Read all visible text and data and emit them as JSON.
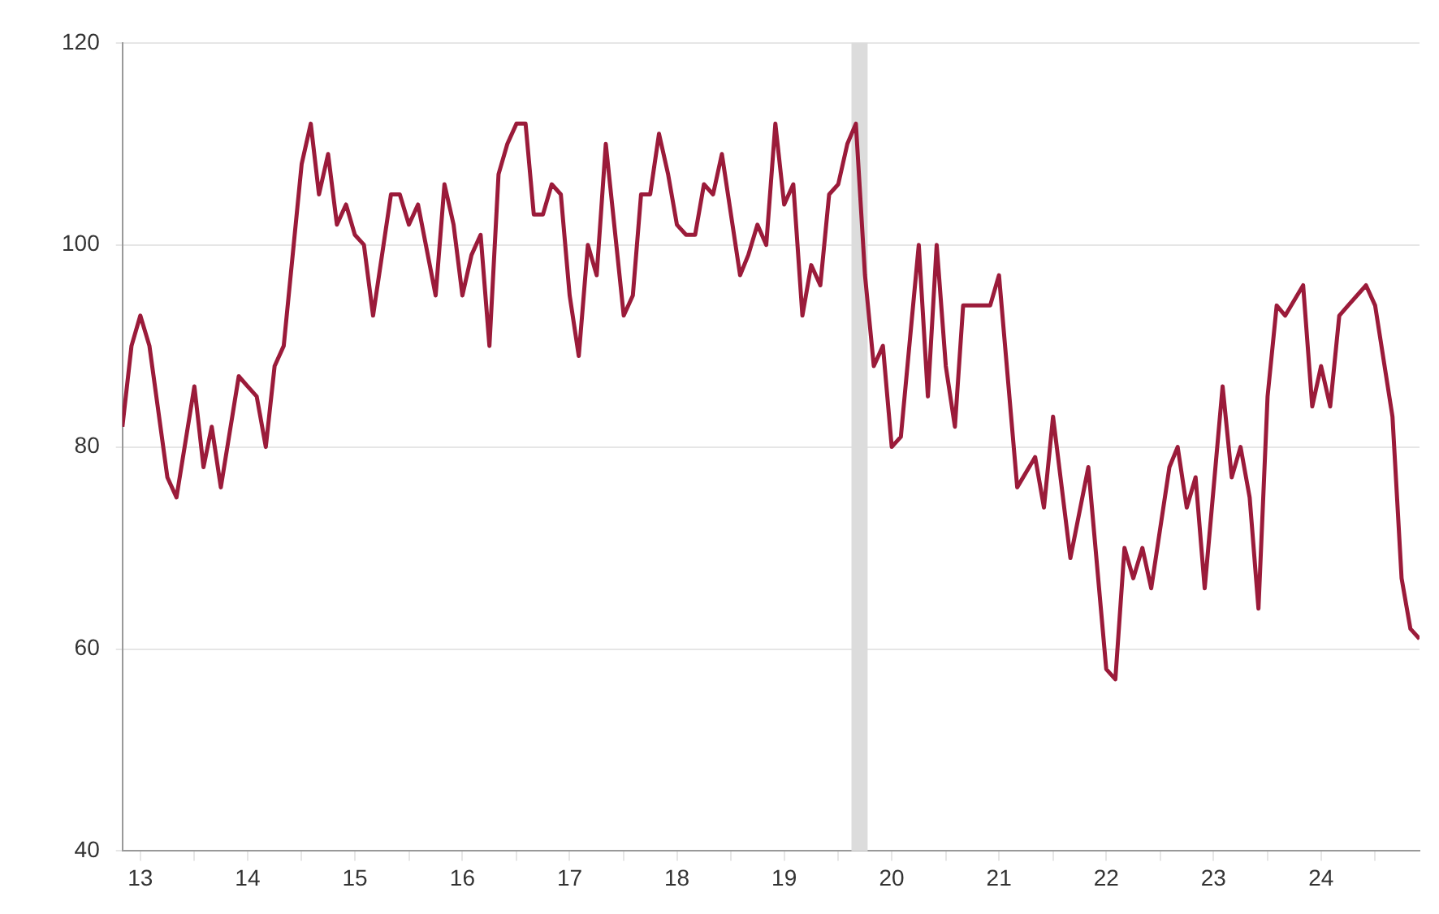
{
  "chart_data": {
    "type": "line",
    "xlim": [
      "2013-05",
      "2025-06"
    ],
    "ylim": [
      40,
      120
    ],
    "yticks": [
      40,
      60,
      80,
      100,
      120
    ],
    "xticks": [
      {
        "value": "2013-07",
        "label": "13"
      },
      {
        "value": "2014",
        "label": null
      },
      {
        "value": "2014-07",
        "label": "14"
      },
      {
        "value": "2015",
        "label": null
      },
      {
        "value": "2015-07",
        "label": "15"
      },
      {
        "value": "2016",
        "label": null
      },
      {
        "value": "2016-07",
        "label": "16"
      },
      {
        "value": "2017",
        "label": null
      },
      {
        "value": "2017-07",
        "label": "17"
      },
      {
        "value": "2018",
        "label": null
      },
      {
        "value": "2018-07",
        "label": "18"
      },
      {
        "value": "2019",
        "label": null
      },
      {
        "value": "2019-07",
        "label": "19"
      },
      {
        "value": "2020",
        "label": null
      },
      {
        "value": "2020-07",
        "label": "20"
      },
      {
        "value": "2021",
        "label": null
      },
      {
        "value": "2021-07",
        "label": "21"
      },
      {
        "value": "2022",
        "label": null
      },
      {
        "value": "2022-07",
        "label": "22"
      },
      {
        "value": "2023",
        "label": null
      },
      {
        "value": "2023-07",
        "label": "23"
      },
      {
        "value": "2024",
        "label": null
      },
      {
        "value": "2024-07",
        "label": "24"
      },
      {
        "value": "2025",
        "label": null
      }
    ],
    "grid": "y",
    "marker": "none",
    "line_style": "solid",
    "bands": [
      {
        "axis": "x",
        "from": "2020-02-15",
        "to": "2020-04-10",
        "color": "#dcdcdc"
      }
    ],
    "series": [
      {
        "color": "#9b1b3a",
        "x": [
          "2013-05",
          "2013-06",
          "2013-07",
          "2013-08",
          "2013-10",
          "2013-11",
          "2014-01",
          "2014-02",
          "2014-03",
          "2014-04",
          "2014-06",
          "2014-07",
          "2014-08",
          "2014-09",
          "2014-10",
          "2014-11",
          "2015-01",
          "2015-02",
          "2015-03",
          "2015-04",
          "2015-05",
          "2015-06",
          "2015-07",
          "2015-08",
          "2015-09",
          "2015-11",
          "2015-12",
          "2016-01",
          "2016-02",
          "2016-04",
          "2016-05",
          "2016-06",
          "2016-07",
          "2016-08",
          "2016-09",
          "2016-10",
          "2016-11",
          "2016-12",
          "2017-01",
          "2017-02",
          "2017-03",
          "2017-04",
          "2017-05",
          "2017-06",
          "2017-07",
          "2017-08",
          "2017-09",
          "2017-10",
          "2017-11",
          "2018-01",
          "2018-02",
          "2018-03",
          "2018-04",
          "2018-05",
          "2018-06",
          "2018-07",
          "2018-08",
          "2018-09",
          "2018-10",
          "2018-11",
          "2018-12",
          "2019-02",
          "2019-03",
          "2019-04",
          "2019-05",
          "2019-06",
          "2019-07",
          "2019-08",
          "2019-09",
          "2019-10",
          "2019-11",
          "2019-12",
          "2020-01",
          "2020-02",
          "2020-03",
          "2020-04",
          "2020-05",
          "2020-06",
          "2020-07",
          "2020-08",
          "2020-10",
          "2020-11",
          "2020-12",
          "2021-01",
          "2021-02",
          "2021-03",
          "2021-05",
          "2021-06",
          "2021-07",
          "2021-09",
          "2021-11",
          "2021-12",
          "2022-01",
          "2022-03",
          "2022-05",
          "2022-07",
          "2022-08",
          "2022-09",
          "2022-10",
          "2022-11",
          "2022-12",
          "2023-02",
          "2023-03",
          "2023-04",
          "2023-05",
          "2023-06",
          "2023-08",
          "2023-09",
          "2023-10",
          "2023-11",
          "2023-12",
          "2024-01",
          "2024-02",
          "2024-03",
          "2024-05",
          "2024-06",
          "2024-07",
          "2024-08",
          "2024-09",
          "2024-10",
          "2024-12",
          "2025-01",
          "2025-03",
          "2025-04",
          "2025-05",
          "2025-06"
        ],
        "values": [
          82,
          90,
          93,
          90,
          77,
          75,
          86,
          78,
          82,
          76,
          87,
          86,
          85,
          80,
          88,
          90,
          108,
          112,
          105,
          109,
          102,
          104,
          101,
          100,
          93,
          105,
          105,
          102,
          104,
          95,
          106,
          102,
          95,
          99,
          101,
          90,
          107,
          110,
          112,
          112,
          103,
          103,
          106,
          105,
          95,
          89,
          100,
          97,
          110,
          93,
          95,
          105,
          105,
          111,
          107,
          102,
          101,
          101,
          106,
          105,
          109,
          97,
          99,
          102,
          100,
          112,
          104,
          106,
          93,
          98,
          96,
          105,
          106,
          110,
          112,
          97,
          88,
          90,
          80,
          81,
          100,
          85,
          100,
          88,
          82,
          94,
          94,
          94,
          97,
          76,
          79,
          74,
          83,
          69,
          78,
          58,
          57,
          70,
          67,
          70,
          66,
          78,
          80,
          74,
          77,
          66,
          86,
          77,
          80,
          75,
          64,
          85,
          94,
          93,
          96,
          84,
          88,
          84,
          93,
          94,
          96,
          94,
          83,
          67,
          62,
          61
        ]
      }
    ]
  }
}
